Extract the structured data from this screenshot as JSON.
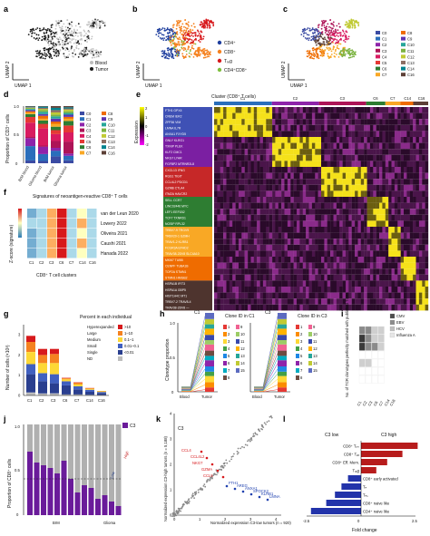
{
  "panels": {
    "a": {
      "letter": "a",
      "xlabel": "UMAP 1",
      "ylabel": "UMAP 2",
      "legend": [
        {
          "label": "Blood",
          "color": "#bdbdbd"
        },
        {
          "label": "Tumor",
          "color": "#1a1a1a"
        }
      ]
    },
    "b": {
      "letter": "b",
      "xlabel": "UMAP 1",
      "ylabel": "UMAP 2",
      "legend": [
        {
          "label": "CD4⁺",
          "color": "#1f3f9e"
        },
        {
          "label": "CD8⁺",
          "color": "#f58220"
        },
        {
          "label": "Tᵣₑg",
          "color": "#d7191c"
        },
        {
          "label": "CD4⁺CD8⁺",
          "color": "#7fbf3f"
        }
      ]
    },
    "c": {
      "letter": "c",
      "xlabel": "UMAP 1",
      "ylabel": "UMAP 2"
    },
    "d": {
      "letter": "d",
      "ylabel": "Proportion of CD3⁺ cells",
      "yticks": [
        "0",
        "0.5",
        "1.0"
      ],
      "categories": [
        "BrM blood",
        "Glioma blood",
        "BrM tumor",
        "Glioma tumor"
      ]
    },
    "e": {
      "letter": "e",
      "header": "Cluster (CD8⁺ T cells)",
      "colorbar_label": "Expression",
      "colorbar_ticks": [
        "2",
        "1",
        "0",
        "-1",
        "-2"
      ],
      "clusters": [
        {
          "name": "C1",
          "color": "#2a6ebb"
        },
        {
          "name": "C2",
          "color": "#8e24aa"
        },
        {
          "name": "C3",
          "color": "#ad1457"
        },
        {
          "name": "C6",
          "color": "#2e7d32"
        },
        {
          "name": "C7",
          "color": "#f9a825"
        },
        {
          "name": "C14",
          "color": "#ef6c00"
        },
        {
          "name": "C16",
          "color": "#5d4037"
        }
      ],
      "gene_blocks": [
        {
          "color": "#3f51b5",
          "genes": [
            "FTH1 GPX4",
            "CREM IER2",
            "ZFP36 VIM",
            "LMNA IL7R",
            "ANXA1 FXYD5"
          ]
        },
        {
          "color": "#7b1fa2",
          "genes": [
            "GNLY KLRG1",
            "TXNIP PLEK",
            "KLF2 CMC1",
            "NKG7 LYAR",
            "FGFBP2 MTRNR2L8"
          ]
        },
        {
          "color": "#c62828",
          "genes": [
            "CXCL13 IFNG",
            "RGS1 TIGIT",
            "CCL4L2 PDCD1",
            "GZMB CTLA4",
            "ITM2A HAVCR2"
          ]
        },
        {
          "color": "#2e7d32",
          "genes": [
            "SELL CCR7",
            "LINC02446 MYC",
            "LEF1 EEF1B2",
            "TCF7 TXNRD1",
            "NOSIP RPL32"
          ]
        },
        {
          "color": "#f9a825",
          "genes": [
            "TRBV7-9 TRGV9",
            "TRBV20-1 GZMH",
            "TRAV1-2 KLRB1",
            "FCGR3A EFHD2",
            "TRAV38-2DV8 SLC4A10"
          ]
        },
        {
          "color": "#ef6c00",
          "genes": [
            "MKI67 TUBB",
            "CENPF TUBA1B",
            "TOP2A STMN1",
            "STMN1 HMGB2"
          ]
        },
        {
          "color": "#4e342e",
          "genes": [
            "HSPA1B IFIT3",
            "HSPA1A GBP5",
            "HIST1H4C MT1",
            "TRBV7-2 TRAV8-4",
            "TRAV38-2DV8 —"
          ]
        }
      ]
    },
    "f": {
      "letter": "f",
      "title": "Signatures of neoantigen-reactive CD8⁺ T cells",
      "ylabel": "Z-score (signature)",
      "xlabel": "CD8⁺ T cell clusters",
      "clusters": [
        "C1",
        "C2",
        "C3",
        "C6",
        "C7",
        "C14",
        "C16"
      ],
      "studies": [
        "van der Leun 2020",
        "Lowery 2022",
        "Oliveira 2021",
        "Caushi 2021",
        "Hanada 2022"
      ],
      "scores": [
        [
          -0.5,
          -0.3,
          0.5,
          2.0,
          -0.2,
          0.3,
          -0.2
        ],
        [
          -0.4,
          -0.3,
          0.6,
          2.0,
          -0.3,
          0.4,
          -0.2
        ],
        [
          -0.6,
          -0.2,
          0.5,
          2.0,
          -0.2,
          0.2,
          -0.3
        ],
        [
          -0.5,
          -0.3,
          0.7,
          1.9,
          -0.3,
          0.4,
          -0.2
        ],
        [
          -0.7,
          -0.4,
          0.4,
          2.0,
          -0.1,
          0.3,
          -0.3
        ]
      ]
    },
    "g": {
      "letter": "g",
      "ylabel": "Number of cells (×10³)",
      "yticks": [
        "0",
        "1",
        "2",
        "3"
      ],
      "legend_title": "Percent in each individual",
      "legend": [
        {
          "label": "Hyperexpanded",
          "range": ">10",
          "color": "#d7191c"
        },
        {
          "label": "Large",
          "range": "1–10",
          "color": "#f58220"
        },
        {
          "label": "Medium",
          "range": "0.1–1",
          "color": "#fdd835"
        },
        {
          "label": "Small",
          "range": "0.01–0.1",
          "color": "#4060c0"
        },
        {
          "label": "Single",
          "range": "<0.01",
          "color": "#2a3f8f"
        },
        {
          "label": "ND",
          "range": "",
          "color": "#bdbdbd"
        }
      ],
      "categories": [
        "C1",
        "C2",
        "C3",
        "C6",
        "C7",
        "C14",
        "C16"
      ]
    },
    "h": {
      "letter": "h",
      "ylabel": "Clonotype proportion",
      "yticks": [
        "0",
        "0.5",
        "1.0"
      ],
      "xlabel_left": "Blood",
      "xlabel_right": "Tumor",
      "left_tag": "C1",
      "right_tag": "C3",
      "left_legend_title": "Clone ID in C1",
      "right_legend_title": "Clone ID in C3",
      "clone_ids": [
        "1",
        "2",
        "3",
        "4",
        "5",
        "6",
        "7",
        "8",
        "9",
        "10",
        "11",
        "12",
        "13",
        "14",
        "15"
      ]
    },
    "i": {
      "letter": "i",
      "ylabel": "No. of TCR clonotypes perfectly matched with published TCRs",
      "legend": [
        {
          "label": "CMV",
          "color": "#4d4d4d"
        },
        {
          "label": "EBV",
          "color": "#8c8c8c"
        },
        {
          "label": "HCV",
          "color": "#bfbfbf"
        },
        {
          "label": "Influenza A",
          "color": "#e6e6e6"
        }
      ],
      "categories": [
        "C1",
        "C2",
        "C3",
        "C6",
        "C7",
        "C14",
        "C16"
      ]
    },
    "j": {
      "letter": "j",
      "ylabel": "Proportion of CD8⁺ cells",
      "yticks": [
        "0",
        "0.5",
        "1.0"
      ],
      "legend": "C3",
      "high": "High",
      "low": "Low",
      "groups": [
        "BrM",
        "Glioma"
      ]
    },
    "k": {
      "letter": "k",
      "tag": "C3",
      "xlabel": "Normalized expression C3-low tumors (n = 920)",
      "ylabel": "Normalized expression C3-high tumors (n = 5,188)",
      "xticks": [
        "0",
        "1",
        "2",
        "3",
        "4"
      ],
      "yticks": [
        "0",
        "1",
        "2",
        "3",
        "4"
      ],
      "genes_red": [
        "CCL4",
        "CCL4L2",
        "NKG7",
        "GZMA",
        "CCL5"
      ],
      "genes_blue": [
        "FTH1",
        "AREG",
        "ANXA1",
        "SPOCK2",
        "KLRB1",
        "LMNA"
      ]
    },
    "l": {
      "letter": "l",
      "xlabel": "Fold change",
      "xticks": [
        "-2.5",
        "0",
        "2.5"
      ],
      "left_title": "C3 low",
      "right_title": "C3 high",
      "bars": [
        {
          "label": "CD8⁺ Tᵣₘ",
          "value": 2.6
        },
        {
          "label": "CD8⁺ Tₑₓ",
          "value": 1.9
        },
        {
          "label": "CD8⁺ Eff. Mem.",
          "value": 1.2
        },
        {
          "label": "Tᵣₑg",
          "value": 0.7
        },
        {
          "label": "CD8⁺ early activated",
          "value": -0.6
        },
        {
          "label": "Tₕ",
          "value": -0.9
        },
        {
          "label": "Tₕ₁",
          "value": -1.2
        },
        {
          "label": "CD8⁺ naive like",
          "value": -1.6
        },
        {
          "label": "CD4⁺ naive like",
          "value": -2.3
        }
      ]
    }
  },
  "chart_data": [
    {
      "type": "bar",
      "title": "",
      "categories": [
        "BrM blood",
        "Glioma blood",
        "BrM tumor",
        "Glioma tumor"
      ],
      "ylabel": "Proportion of CD3⁺ cells",
      "ylim": [
        0,
        1
      ],
      "series": [
        {
          "name": "C0",
          "values": [
            0.05,
            0.04,
            0.12,
            0.05
          ]
        },
        {
          "name": "C1",
          "values": [
            0.25,
            0.12,
            0.1,
            0.08
          ]
        },
        {
          "name": "C2",
          "values": [
            0.14,
            0.13,
            0.05,
            0.04
          ]
        },
        {
          "name": "C3",
          "values": [
            0.02,
            0.02,
            0.12,
            0.21
          ]
        },
        {
          "name": "C4",
          "values": [
            0.25,
            0.3,
            0.12,
            0.16
          ]
        },
        {
          "name": "C5",
          "values": [
            0.1,
            0.08,
            0.07,
            0.12
          ]
        },
        {
          "name": "C6",
          "values": [
            0.05,
            0.06,
            0.06,
            0.08
          ]
        },
        {
          "name": "C7",
          "values": [
            0.03,
            0.03,
            0.05,
            0.04
          ]
        },
        {
          "name": "C8",
          "values": [
            0.02,
            0.05,
            0.04,
            0.03
          ]
        },
        {
          "name": "C9",
          "values": [
            0.02,
            0.03,
            0.05,
            0.04
          ]
        },
        {
          "name": "C10",
          "values": [
            0.02,
            0.04,
            0.04,
            0.03
          ]
        },
        {
          "name": "C11",
          "values": [
            0.01,
            0.03,
            0.03,
            0.03
          ]
        },
        {
          "name": "C12",
          "values": [
            0.01,
            0.02,
            0.04,
            0.03
          ]
        },
        {
          "name": "C13",
          "values": [
            0.01,
            0.02,
            0.04,
            0.02
          ]
        },
        {
          "name": "C14",
          "values": [
            0.01,
            0.02,
            0.04,
            0.02
          ]
        },
        {
          "name": "C16",
          "values": [
            0.01,
            0.01,
            0.03,
            0.02
          ]
        }
      ]
    },
    {
      "type": "bar",
      "title": "",
      "categories": [
        "C1",
        "C2",
        "C3",
        "C6",
        "C7",
        "C14",
        "C16"
      ],
      "ylabel": "Number of cells (×10³)",
      "ylim": [
        0,
        3.5
      ],
      "series": [
        {
          "name": "ND",
          "values": [
            0.15,
            0.1,
            0.1,
            0.05,
            0.05,
            0.03,
            0.02
          ]
        },
        {
          "name": "Single",
          "values": [
            0.9,
            0.6,
            0.5,
            0.45,
            0.25,
            0.15,
            0.1
          ]
        },
        {
          "name": "Small",
          "values": [
            0.5,
            0.4,
            0.45,
            0.2,
            0.15,
            0.1,
            0.05
          ]
        },
        {
          "name": "Medium",
          "values": [
            0.6,
            0.5,
            0.55,
            0.1,
            0.1,
            0.05,
            0.03
          ]
        },
        {
          "name": "Large",
          "values": [
            0.5,
            0.4,
            0.45,
            0.05,
            0.08,
            0.03,
            0.02
          ]
        },
        {
          "name": "Hyperexpanded",
          "values": [
            0.3,
            0.3,
            0.25,
            0.02,
            0.02,
            0.01,
            0.0
          ]
        }
      ]
    },
    {
      "type": "bar",
      "title": "",
      "categories": [
        "C1",
        "C2",
        "C3",
        "C6",
        "C7",
        "C14",
        "C16"
      ],
      "ylabel": "No. of TCR clonotypes perfectly matched with published TCRs",
      "series": [
        {
          "name": "CMV",
          "values": [
            6,
            10,
            8,
            0,
            2,
            0,
            0
          ]
        },
        {
          "name": "EBV",
          "values": [
            4,
            6,
            5,
            0,
            1,
            0,
            0
          ]
        },
        {
          "name": "HCV",
          "values": [
            1,
            2,
            3,
            0,
            0,
            0,
            0
          ]
        },
        {
          "name": "Influenza A",
          "values": [
            1,
            1,
            1,
            0,
            0,
            0,
            0
          ]
        }
      ]
    },
    {
      "type": "bar",
      "title": "",
      "categories": [
        "CD8⁺ Tᵣₘ",
        "CD8⁺ Tₑₓ",
        "CD8⁺ Eff. Mem.",
        "Tᵣₑg",
        "CD8⁺ early activated",
        "Tₕ",
        "Tₕ₁",
        "CD8⁺ naive like",
        "CD4⁺ naive like"
      ],
      "xlabel": "Fold change",
      "xlim": [
        -2.5,
        2.5
      ],
      "values": [
        2.6,
        1.9,
        1.2,
        0.7,
        -0.6,
        -0.9,
        -1.2,
        -1.6,
        -2.3
      ]
    }
  ]
}
